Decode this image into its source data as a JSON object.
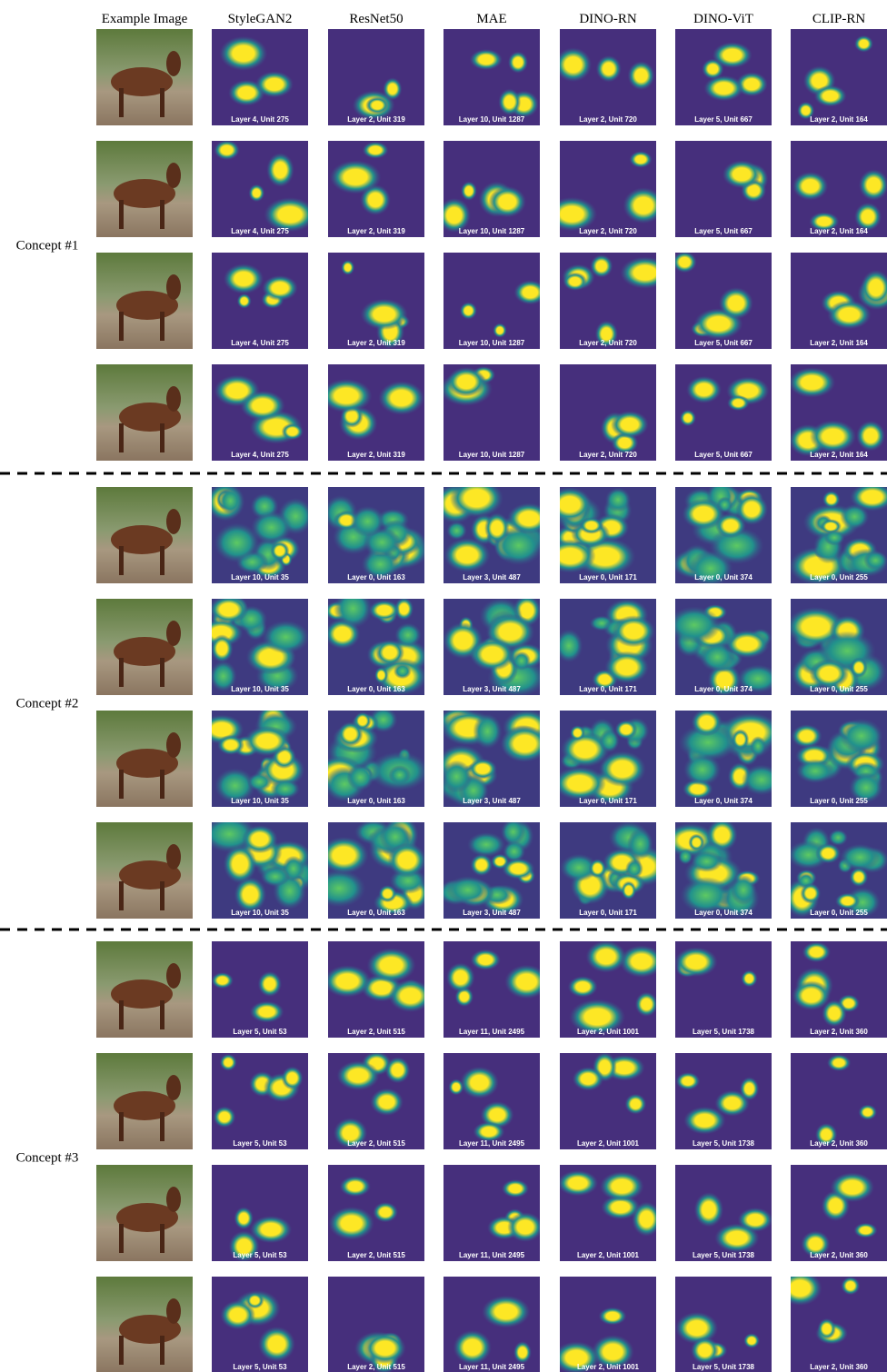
{
  "headers": [
    "Example Image",
    "StyleGAN2",
    "ResNet50",
    "MAE",
    "DINO-RN",
    "DINO-ViT",
    "CLIP-RN"
  ],
  "concepts": [
    {
      "label": "Concept #1",
      "units": [
        "Layer 4, Unit 275",
        "Layer 2, Unit 319",
        "Layer 10, Unit 1287",
        "Layer 2, Unit 720",
        "Layer 5, Unit 667",
        "Layer 2, Unit 164"
      ]
    },
    {
      "label": "Concept #2",
      "units": [
        "Layer 10, Unit 35",
        "Layer 0, Unit 163",
        "Layer 3, Unit 487",
        "Layer 0, Unit 171",
        "Layer 0, Unit 374",
        "Layer 0, Unit 255"
      ]
    },
    {
      "label": "Concept #3",
      "units": [
        "Layer 5, Unit 53",
        "Layer 2, Unit 515",
        "Layer 11, Unit 2495",
        "Layer 2, Unit 1001",
        "Layer 5, Unit 1738",
        "Layer 2, Unit 360"
      ]
    }
  ]
}
